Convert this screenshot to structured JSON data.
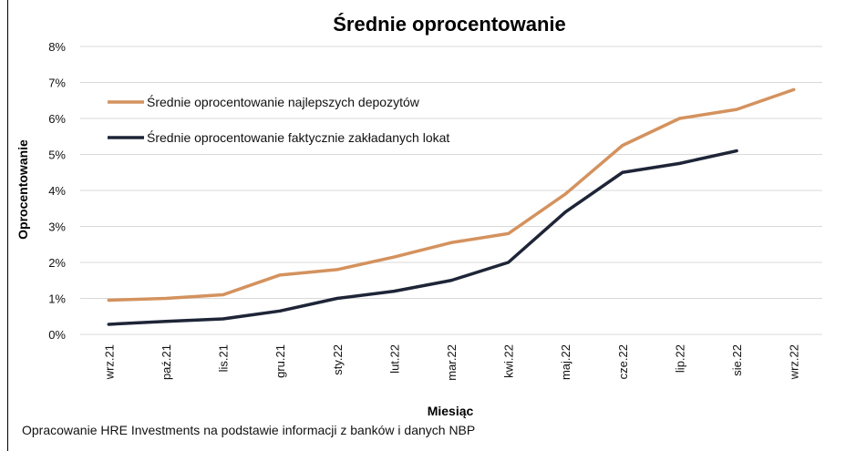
{
  "source_note": "Opracowanie HRE Investments na podstawie informacji z banków i danych NBP",
  "colors": {
    "series1": "#d4925e",
    "series2": "#1e2537",
    "grid": "#d9d9d9"
  },
  "chart_data": {
    "type": "line",
    "title": "Średnie oprocentowanie",
    "xlabel": "Miesiąc",
    "ylabel": "Oprocentowanie",
    "ylim": [
      0,
      8
    ],
    "yticks": [
      "0%",
      "1%",
      "2%",
      "3%",
      "4%",
      "5%",
      "6%",
      "7%",
      "8%"
    ],
    "grid": true,
    "legend_position": "top-left",
    "categories": [
      "wrz.21",
      "paź.21",
      "lis.21",
      "gru.21",
      "sty.22",
      "lut.22",
      "mar.22",
      "kwi.22",
      "maj.22",
      "cze.22",
      "lip.22",
      "sie.22",
      "wrz.22"
    ],
    "series": [
      {
        "name": "Średnie oprocentowanie najlepszych depozytów",
        "color": "#d4925e",
        "values": [
          0.95,
          1.0,
          1.1,
          1.65,
          1.8,
          2.15,
          2.55,
          2.8,
          3.9,
          5.25,
          6.0,
          6.25,
          6.8
        ]
      },
      {
        "name": "Średnie oprocentowanie faktycznie zakładanych lokat",
        "color": "#1e2537",
        "values": [
          0.28,
          0.36,
          0.43,
          0.65,
          1.0,
          1.2,
          1.5,
          2.0,
          3.4,
          4.5,
          4.75,
          5.1,
          null
        ]
      }
    ]
  }
}
